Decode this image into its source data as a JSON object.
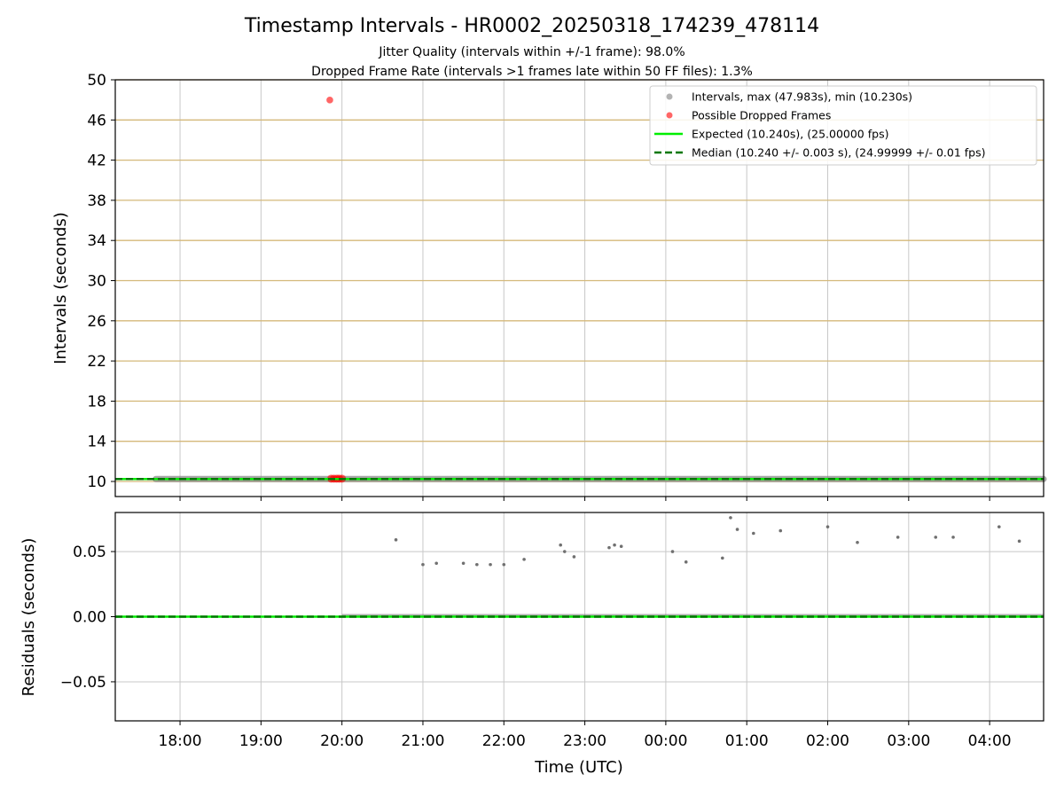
{
  "chart_data": {
    "type": "scatter",
    "title": "Timestamp Intervals - HR0002_20250318_174239_478114",
    "subtitle_lines": [
      "Jitter Quality (intervals within +/-1 frame): 98.0%",
      "Dropped Frame Rate (intervals >1 frames late within 50 FF files): 1.3%"
    ],
    "xlabel": "Time (UTC)",
    "x_tick_labels": [
      "18:00",
      "19:00",
      "20:00",
      "21:00",
      "22:00",
      "23:00",
      "00:00",
      "01:00",
      "02:00",
      "03:00",
      "04:00"
    ],
    "x_range": [
      "2025-03-18 17:12",
      "2025-03-19 04:40"
    ],
    "panels": [
      {
        "name": "intervals",
        "ylabel": "Intervals (seconds)",
        "ylim": [
          8.5,
          50
        ],
        "y_ticks": [
          10,
          14,
          18,
          22,
          26,
          30,
          34,
          38,
          42,
          46,
          50
        ],
        "y_tick_labels": [
          "10",
          "14",
          "18",
          "22",
          "26",
          "30",
          "34",
          "38",
          "42",
          "46",
          "50"
        ],
        "grid": true,
        "horizontal_grid_color": "#d4b87a",
        "series": [
          {
            "name": "Intervals, max (47.983s), min (10.230s)",
            "kind": "scatter",
            "color": "#808080",
            "summary": {
              "max": 47.983,
              "min": 10.23,
              "typical": 10.24
            },
            "x_range": [
              "2025-03-18 17:42",
              "2025-03-19 04:40"
            ]
          },
          {
            "name": "Possible Dropped Frames",
            "kind": "scatter",
            "color": "#ff0000",
            "points": [
              {
                "x": "2025-03-18 19:51",
                "y": 47.983
              },
              {
                "x": "2025-03-18 19:52",
                "y": 10.28
              },
              {
                "x": "2025-03-18 19:54",
                "y": 10.28
              },
              {
                "x": "2025-03-18 19:56",
                "y": 10.28
              },
              {
                "x": "2025-03-18 19:58",
                "y": 10.28
              },
              {
                "x": "2025-03-18 20:00",
                "y": 10.28
              }
            ]
          },
          {
            "name": "Expected (10.240s), (25.00000 fps)",
            "kind": "hline",
            "y": 10.24,
            "color": "#00ee00",
            "style": "solid"
          },
          {
            "name": "Median (10.240 +/- 0.003 s), (24.99999 +/- 0.01 fps)",
            "kind": "hline",
            "y": 10.24,
            "color": "#007700",
            "style": "dashed"
          }
        ],
        "legend_position": "top-right"
      },
      {
        "name": "residuals",
        "ylabel": "Residuals (seconds)",
        "ylim": [
          -0.08,
          0.08
        ],
        "y_ticks": [
          -0.05,
          0.0,
          0.05
        ],
        "y_tick_labels": [
          "−0.05",
          "0.00",
          "0.05"
        ],
        "grid": true,
        "series": [
          {
            "name": "Residuals",
            "kind": "scatter",
            "color": "#707070",
            "points": [
              {
                "x": "2025-03-18 20:40",
                "y": 0.059
              },
              {
                "x": "2025-03-18 21:00",
                "y": 0.04
              },
              {
                "x": "2025-03-18 21:10",
                "y": 0.041
              },
              {
                "x": "2025-03-18 21:30",
                "y": 0.041
              },
              {
                "x": "2025-03-18 21:40",
                "y": 0.04
              },
              {
                "x": "2025-03-18 21:50",
                "y": 0.04
              },
              {
                "x": "2025-03-18 22:00",
                "y": 0.04
              },
              {
                "x": "2025-03-18 22:15",
                "y": 0.044
              },
              {
                "x": "2025-03-18 22:42",
                "y": 0.055
              },
              {
                "x": "2025-03-18 22:45",
                "y": 0.05
              },
              {
                "x": "2025-03-18 22:52",
                "y": 0.046
              },
              {
                "x": "2025-03-18 23:18",
                "y": 0.053
              },
              {
                "x": "2025-03-18 23:22",
                "y": 0.055
              },
              {
                "x": "2025-03-18 23:27",
                "y": 0.054
              },
              {
                "x": "2025-03-19 00:05",
                "y": 0.05
              },
              {
                "x": "2025-03-19 00:15",
                "y": 0.042
              },
              {
                "x": "2025-03-19 00:42",
                "y": 0.045
              },
              {
                "x": "2025-03-19 00:48",
                "y": 0.076
              },
              {
                "x": "2025-03-19 00:53",
                "y": 0.067
              },
              {
                "x": "2025-03-19 01:05",
                "y": 0.064
              },
              {
                "x": "2025-03-19 01:25",
                "y": 0.066
              },
              {
                "x": "2025-03-19 02:00",
                "y": 0.069
              },
              {
                "x": "2025-03-19 02:22",
                "y": 0.057
              },
              {
                "x": "2025-03-19 02:52",
                "y": 0.061
              },
              {
                "x": "2025-03-19 03:20",
                "y": 0.061
              },
              {
                "x": "2025-03-19 03:33",
                "y": 0.061
              },
              {
                "x": "2025-03-19 04:07",
                "y": 0.069
              },
              {
                "x": "2025-03-19 04:22",
                "y": 0.058
              }
            ],
            "dense_band_note_hidden": true
          },
          {
            "name": "Expected",
            "kind": "hline",
            "y": 0.0,
            "color": "#00ee00",
            "style": "solid"
          },
          {
            "name": "Median",
            "kind": "hline",
            "y": 0.0,
            "color": "#007700",
            "style": "dashed"
          }
        ]
      }
    ]
  }
}
